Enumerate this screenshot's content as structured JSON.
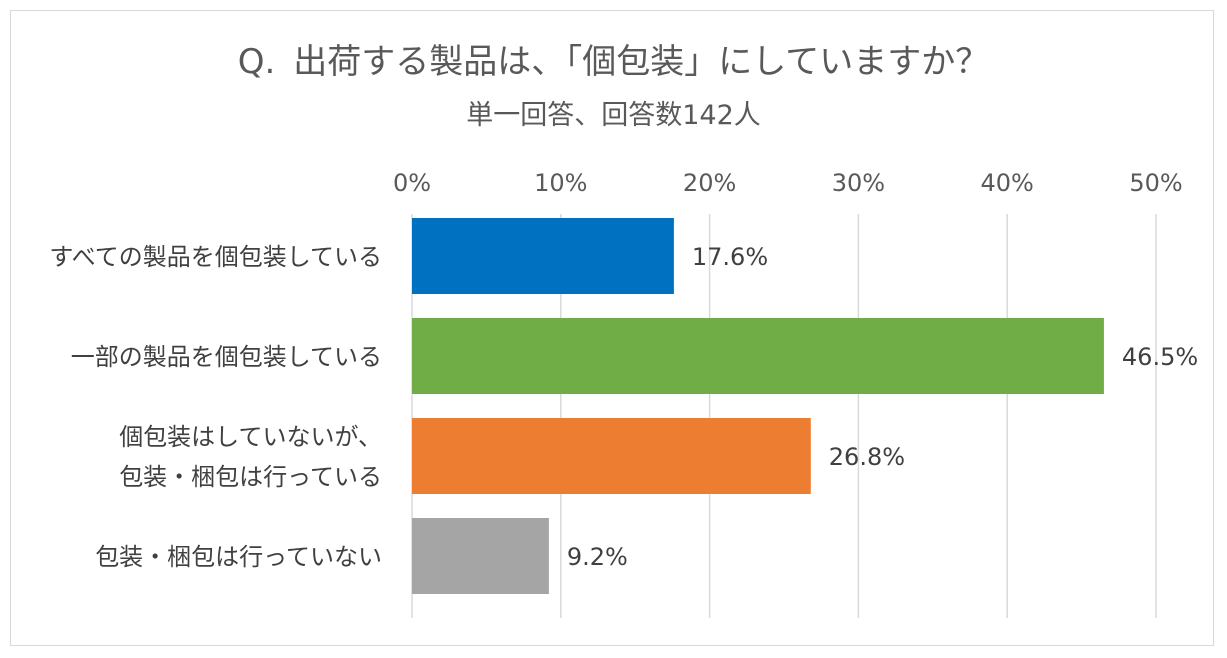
{
  "chart_data": {
    "type": "bar",
    "orientation": "horizontal",
    "title_prefix": "Q.",
    "title": "出荷する製品は、「個包装」にしていますか？",
    "subtitle": "単一回答、回答数142人",
    "xlim": [
      0,
      50
    ],
    "ticks": [
      0,
      10,
      20,
      30,
      40,
      50
    ],
    "tick_labels": [
      "0%",
      "10%",
      "20%",
      "30%",
      "40%",
      "50%"
    ],
    "axis_position": "top",
    "grid": true,
    "categories": [
      [
        "すべての製品を個包装している"
      ],
      [
        "一部の製品を個包装している"
      ],
      [
        "個包装はしていないが、",
        "包装・梱包は行っている"
      ],
      [
        "包装・梱包は行っていない"
      ]
    ],
    "values": [
      17.6,
      46.5,
      26.8,
      9.2
    ],
    "value_labels": [
      "17.6%",
      "46.5%",
      "26.8%",
      "9.2%"
    ],
    "colors": [
      "#0070c0",
      "#70ad47",
      "#ed7d31",
      "#a5a5a5"
    ],
    "grid_color": "#d9d9d9"
  }
}
